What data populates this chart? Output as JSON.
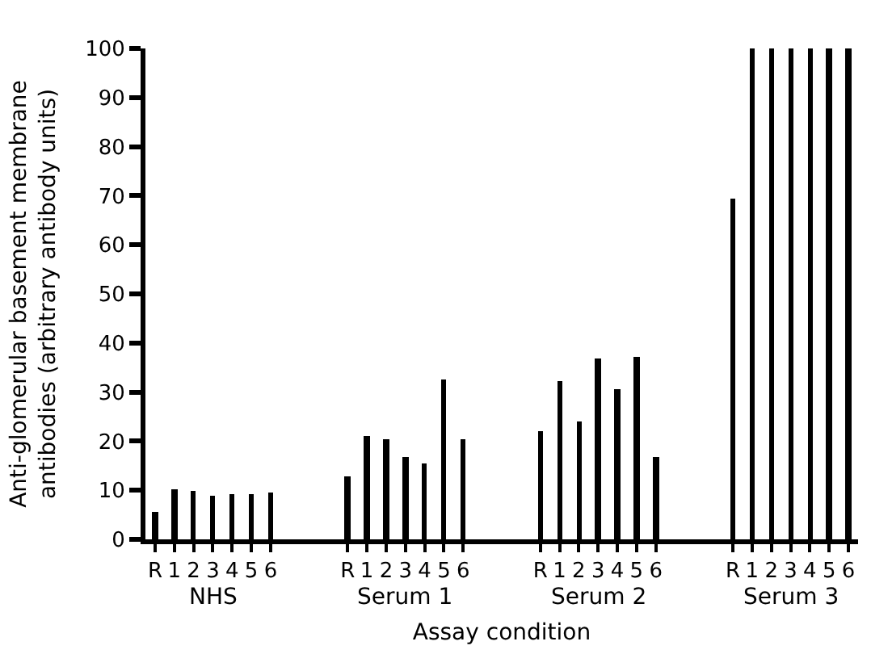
{
  "chart_data": {
    "type": "bar",
    "ylabel": "Anti-glomerular basement membrane\nantibodies (arbitrary antibody units)",
    "xlabel": "Assay condition",
    "categories": [
      "R",
      "1",
      "2",
      "3",
      "4",
      "5",
      "6",
      null,
      null,
      null,
      "R",
      "1",
      "2",
      "3",
      "4",
      "5",
      "6",
      null,
      null,
      null,
      "R",
      "1",
      "2",
      "3",
      "4",
      "5",
      "6",
      null,
      null,
      null,
      "R",
      "1",
      "2",
      "3",
      "4",
      "5",
      "6"
    ],
    "values": [
      5.7,
      10.3,
      9.9,
      9.0,
      9.2,
      9.2,
      9.6,
      null,
      null,
      null,
      12.8,
      21,
      20.4,
      16.7,
      15.4,
      32.5,
      20.4,
      null,
      null,
      null,
      21.9,
      32.3,
      23.9,
      36.8,
      30.6,
      37.1,
      16.7,
      null,
      null,
      null,
      69.3,
      100,
      100,
      100,
      100,
      100,
      100
    ],
    "color": "#000000",
    "ylim": [
      0,
      100
    ],
    "yticks": [
      0,
      10,
      20,
      30,
      40,
      50,
      60,
      70,
      80,
      90,
      100
    ],
    "annotations": [
      "NHS",
      "Serum 1",
      "Serum 2",
      "Serum 3"
    ]
  }
}
